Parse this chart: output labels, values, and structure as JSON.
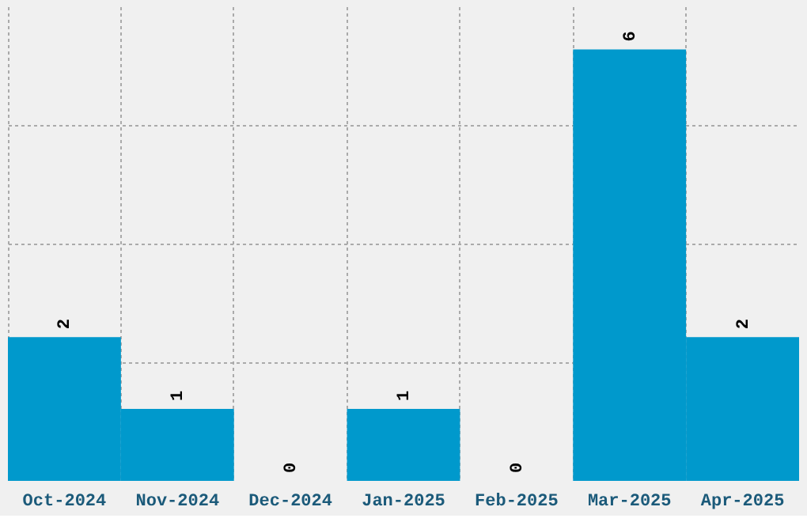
{
  "chart_data": {
    "type": "bar",
    "categories": [
      "Oct-2024",
      "Nov-2024",
      "Dec-2024",
      "Jan-2025",
      "Feb-2025",
      "Mar-2025",
      "Apr-2025"
    ],
    "values": [
      2,
      1,
      0,
      1,
      0,
      6,
      2
    ],
    "color": "#0099cc",
    "data_labels": true,
    "grid": true,
    "tick_labels": "x",
    "ylim": [
      0,
      6.6
    ],
    "yticks": [
      {
        "value": 1.65,
        "label": null
      },
      {
        "value": 3.3,
        "label": null
      },
      {
        "value": 4.95,
        "label": null
      }
    ]
  }
}
